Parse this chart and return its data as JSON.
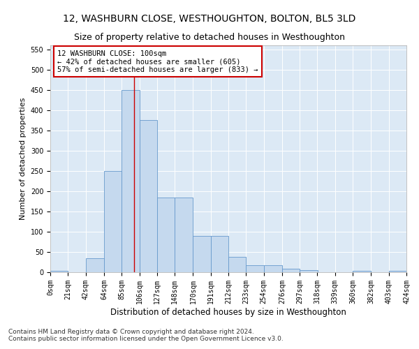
{
  "title": "12, WASHBURN CLOSE, WESTHOUGHTON, BOLTON, BL5 3LD",
  "subtitle": "Size of property relative to detached houses in Westhoughton",
  "xlabel": "Distribution of detached houses by size in Westhoughton",
  "ylabel": "Number of detached properties",
  "bin_edges": [
    0,
    21,
    42,
    64,
    85,
    106,
    127,
    148,
    170,
    191,
    212,
    233,
    254,
    276,
    297,
    318,
    339,
    360,
    382,
    403,
    424
  ],
  "bar_heights": [
    3,
    0,
    35,
    250,
    450,
    375,
    185,
    185,
    90,
    90,
    38,
    18,
    18,
    9,
    5,
    0,
    0,
    4,
    0,
    3
  ],
  "bar_color": "#c5d9ee",
  "bar_edgecolor": "#6699cc",
  "vline_x": 100,
  "vline_color": "#cc0000",
  "annotation_text": "12 WASHBURN CLOSE: 100sqm\n← 42% of detached houses are smaller (605)\n57% of semi-detached houses are larger (833) →",
  "annotation_box_edgecolor": "#cc0000",
  "annotation_box_facecolor": "#ffffff",
  "ylim": [
    0,
    560
  ],
  "yticks": [
    0,
    50,
    100,
    150,
    200,
    250,
    300,
    350,
    400,
    450,
    500,
    550
  ],
  "background_color": "#dce9f5",
  "footnote": "Contains HM Land Registry data © Crown copyright and database right 2024.\nContains public sector information licensed under the Open Government Licence v3.0.",
  "title_fontsize": 10,
  "subtitle_fontsize": 9,
  "xlabel_fontsize": 8.5,
  "ylabel_fontsize": 8,
  "tick_fontsize": 7,
  "annotation_fontsize": 7.5,
  "footnote_fontsize": 6.5
}
